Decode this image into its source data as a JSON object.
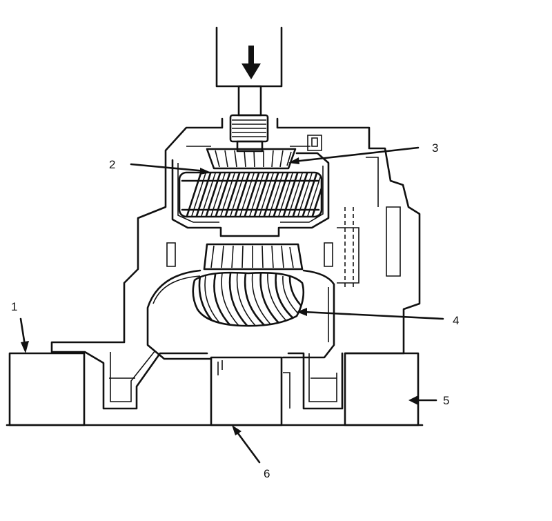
{
  "callouts": [
    {
      "id": "1",
      "label": "1"
    },
    {
      "id": "2",
      "label": "2"
    },
    {
      "id": "3",
      "label": "3"
    },
    {
      "id": "4",
      "label": "4"
    },
    {
      "id": "5",
      "label": "5"
    },
    {
      "id": "6",
      "label": "6"
    }
  ],
  "colors": {
    "ink": "#111111",
    "paper": "#ffffff",
    "wood": "#555555"
  }
}
